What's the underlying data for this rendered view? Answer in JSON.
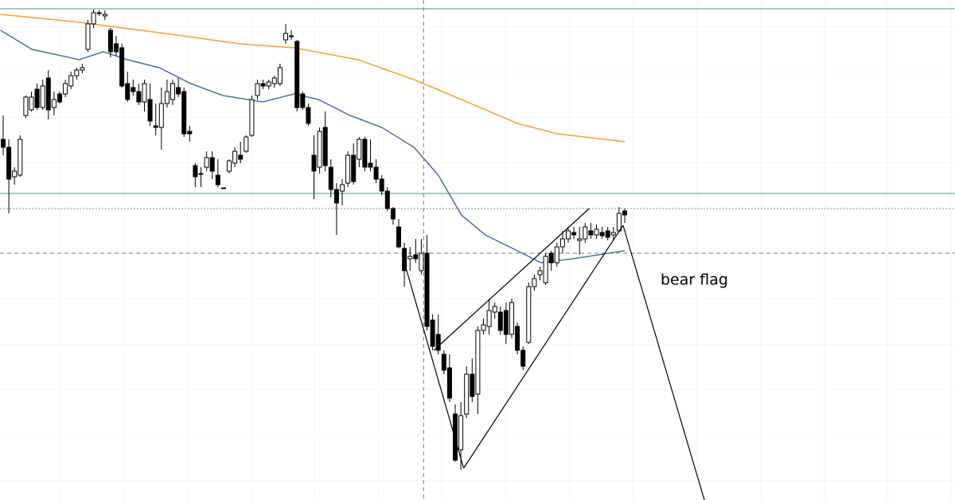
{
  "chart_data": {
    "type": "candlestick",
    "ylim": [
      0,
      628
    ],
    "up_color": "#ffffff",
    "down_color": "#000000",
    "open": [
      453,
      443,
      406,
      408,
      483,
      490,
      516,
      493,
      530,
      493,
      510,
      510,
      520,
      533,
      540,
      566,
      598,
      612,
      608,
      590,
      573,
      568,
      523,
      518,
      513,
      500,
      503,
      470,
      468,
      498,
      503,
      518,
      513,
      463,
      420,
      410,
      418,
      430,
      408,
      392,
      413,
      423,
      433,
      438,
      458,
      508,
      523,
      520,
      523,
      523,
      578,
      583,
      576,
      510,
      493,
      433,
      418,
      468,
      418,
      390,
      388,
      398,
      433,
      428,
      453,
      423,
      418,
      403,
      388,
      366,
      343,
      316,
      303,
      308,
      288,
      310,
      226,
      208,
      183,
      166,
      108,
      63,
      108,
      158,
      133,
      213,
      218,
      236,
      236,
      238,
      208,
      218,
      188,
      198,
      268,
      283,
      273,
      310,
      298,
      318,
      328,
      336,
      326,
      328,
      338,
      333,
      336,
      338,
      333,
      338,
      363
    ],
    "high": [
      483,
      453,
      418,
      458,
      508,
      513,
      523,
      528,
      540,
      513,
      513,
      528,
      538,
      543,
      548,
      603,
      616,
      615,
      615,
      593,
      583,
      573,
      538,
      528,
      523,
      528,
      523,
      498,
      518,
      528,
      528,
      530,
      518,
      470,
      423,
      418,
      438,
      438,
      428,
      392,
      428,
      443,
      450,
      458,
      508,
      528,
      528,
      528,
      533,
      548,
      598,
      590,
      578,
      513,
      498,
      458,
      468,
      488,
      428,
      398,
      403,
      438,
      448,
      456,
      456,
      453,
      428,
      408,
      393,
      368,
      353,
      323,
      318,
      328,
      328,
      333,
      233,
      233,
      188,
      183,
      120,
      123,
      168,
      178,
      218,
      228,
      253,
      248,
      243,
      248,
      253,
      223,
      193,
      273,
      283,
      293,
      310,
      313,
      323,
      338,
      343,
      343,
      343,
      348,
      348,
      346,
      343,
      343,
      343,
      368,
      366
    ],
    "low": [
      433,
      360,
      396,
      406,
      480,
      488,
      490,
      490,
      478,
      483,
      498,
      506,
      516,
      528,
      536,
      563,
      593,
      608,
      603,
      556,
      558,
      518,
      500,
      508,
      496,
      488,
      470,
      458,
      440,
      493,
      496,
      506,
      456,
      450,
      393,
      393,
      413,
      403,
      393,
      391,
      410,
      418,
      423,
      436,
      456,
      503,
      516,
      516,
      518,
      520,
      573,
      578,
      488,
      490,
      470,
      378,
      410,
      413,
      380,
      333,
      370,
      393,
      396,
      418,
      413,
      413,
      398,
      383,
      363,
      346,
      316,
      268,
      288,
      298,
      283,
      213,
      188,
      183,
      158,
      123,
      48,
      38,
      103,
      123,
      108,
      208,
      208,
      228,
      208,
      196,
      203,
      183,
      163,
      196,
      263,
      276,
      270,
      288,
      293,
      310,
      323,
      328,
      308,
      323,
      328,
      328,
      328,
      326,
      326,
      336,
      348
    ],
    "close": [
      443,
      403,
      413,
      453,
      506,
      506,
      493,
      520,
      490,
      503,
      500,
      523,
      533,
      540,
      543,
      598,
      612,
      612,
      610,
      563,
      563,
      520,
      503,
      513,
      500,
      523,
      476,
      468,
      498,
      513,
      523,
      510,
      460,
      460,
      406,
      410,
      430,
      413,
      396,
      392,
      426,
      438,
      428,
      456,
      503,
      523,
      520,
      525,
      530,
      543,
      586,
      583,
      493,
      493,
      473,
      413,
      463,
      420,
      390,
      373,
      396,
      433,
      400,
      453,
      418,
      418,
      403,
      388,
      366,
      353,
      318,
      288,
      306,
      303,
      310,
      218,
      193,
      188,
      163,
      128,
      50,
      106,
      158,
      130,
      213,
      220,
      238,
      243,
      213,
      208,
      248,
      188,
      168,
      268,
      278,
      288,
      306,
      298,
      318,
      328,
      338,
      333,
      328,
      343,
      333,
      340,
      332,
      330,
      336,
      360,
      358
    ],
    "moving_averages": [
      {
        "color": "#f7a12a",
        "x": [
          -0.5,
          13.5,
          31.8,
          41.7,
          51.5,
          62.8,
          72.7,
          81.1,
          91,
          98,
          110
        ],
        "values": [
          610,
          600,
          583,
          573,
          568,
          553,
          528,
          503,
          473,
          460,
          450
        ]
      },
      {
        "color": "#4a6fae",
        "x": [
          -0.5,
          5.1,
          13.5,
          17.7,
          22,
          27.6,
          33.2,
          38.9,
          45.9,
          51.5,
          55.8,
          61.4,
          67,
          72.7,
          77,
          81.1,
          85.3,
          91,
          95.2,
          100.8,
          110
        ],
        "values": [
          590,
          566,
          553,
          563,
          553,
          543,
          523,
          508,
          500,
          510,
          503,
          483,
          468,
          443,
          408,
          358,
          333,
          313,
          298,
          303,
          313
        ]
      }
    ],
    "levels": [
      {
        "value": 617,
        "color": "#4f8f8f",
        "dash": "none"
      },
      {
        "value": 385,
        "color": "#4f8f8f",
        "dash": "none"
      },
      {
        "value": 366,
        "color": "#999999",
        "dash": "2 2"
      },
      {
        "value": 310,
        "color": "#777777",
        "dash": "5 4"
      }
    ],
    "crosshair_x": 74.4,
    "trendlines": [
      {
        "x": [
          70.6,
          81.5
        ],
        "values": [
          308,
          40
        ]
      },
      {
        "x": [
          81.5,
          109.7
        ],
        "values": [
          40,
          345
        ]
      },
      {
        "x": [
          76.2,
          103.7
        ],
        "values": [
          188,
          366
        ]
      },
      {
        "x": [
          109.7,
          124.1
        ],
        "values": [
          345,
          0
        ]
      }
    ],
    "annotation": "bear flag"
  }
}
